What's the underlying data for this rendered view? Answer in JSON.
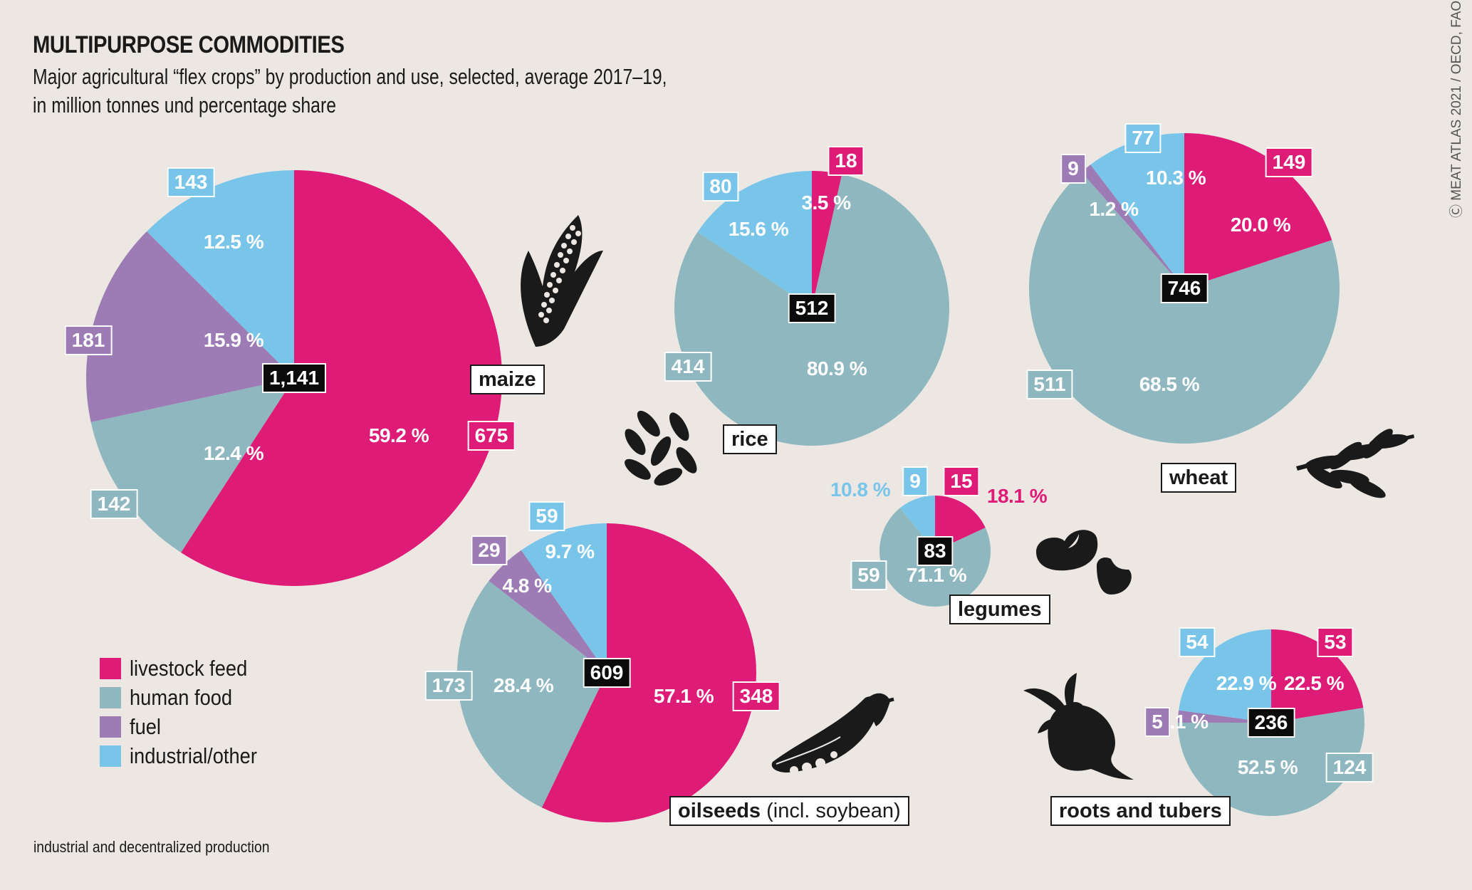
{
  "header": {
    "title": "MULTIPURPOSE COMMODITIES",
    "subtitle_line1": "Major agricultural “flex crops” by production and use, selected, average 2017–19,",
    "subtitle_line2": "in million tonnes und percentage share",
    "credit": "Ⓒ MEAT ATLAS 2021 / OECD, FAO"
  },
  "footnote": "industrial and decentralized production",
  "colors": {
    "livestock_feed": "#df1b78",
    "human_food": "#8fb7bf",
    "fuel": "#9d7bb5",
    "industrial_other": "#79c5ea",
    "total_box": "#0b0b0b"
  },
  "legend": [
    {
      "key": "livestock_feed",
      "label": "livestock feed"
    },
    {
      "key": "human_food",
      "label": "human food"
    },
    {
      "key": "fuel",
      "label": "fuel"
    },
    {
      "key": "industrial_other",
      "label": "industrial/other"
    }
  ],
  "chart_data": {
    "type": "pie",
    "title": "MULTIPURPOSE COMMODITIES",
    "unit": "million tonnes",
    "categories": [
      "livestock feed",
      "human food",
      "fuel",
      "industrial/other"
    ],
    "pies": [
      {
        "name": "maize",
        "total": "1,141",
        "total_value": 1141,
        "slices": [
          {
            "category": "livestock feed",
            "value": 675,
            "percent": "59.2 %"
          },
          {
            "category": "human food",
            "value": 142,
            "percent": "12.4 %"
          },
          {
            "category": "fuel",
            "value": 181,
            "percent": "15.9 %"
          },
          {
            "category": "industrial/other",
            "value": 143,
            "percent": "12.5 %"
          }
        ]
      },
      {
        "name": "rice",
        "total": "512",
        "total_value": 512,
        "slices": [
          {
            "category": "livestock feed",
            "value": 18,
            "percent": "3.5 %"
          },
          {
            "category": "human food",
            "value": 414,
            "percent": "80.9 %"
          },
          {
            "category": "industrial/other",
            "value": 80,
            "percent": "15.6 %"
          }
        ]
      },
      {
        "name": "wheat",
        "total": "746",
        "total_value": 746,
        "slices": [
          {
            "category": "livestock feed",
            "value": 149,
            "percent": "20.0 %"
          },
          {
            "category": "human food",
            "value": 511,
            "percent": "68.5 %"
          },
          {
            "category": "fuel",
            "value": 9,
            "percent": "1.2 %"
          },
          {
            "category": "industrial/other",
            "value": 77,
            "percent": "10.3 %"
          }
        ]
      },
      {
        "name": "legumes",
        "total": "83",
        "total_value": 83,
        "slices": [
          {
            "category": "livestock feed",
            "value": 15,
            "percent": "18.1 %"
          },
          {
            "category": "human food",
            "value": 59,
            "percent": "71.1 %"
          },
          {
            "category": "industrial/other",
            "value": 9,
            "percent": "10.8 %"
          }
        ]
      },
      {
        "name": "oilseeds",
        "name_suffix": "(incl. soybean)",
        "total": "609",
        "total_value": 609,
        "slices": [
          {
            "category": "livestock feed",
            "value": 348,
            "percent": "57.1 %"
          },
          {
            "category": "human food",
            "value": 173,
            "percent": "28.4 %"
          },
          {
            "category": "fuel",
            "value": 29,
            "percent": "4.8 %"
          },
          {
            "category": "industrial/other",
            "value": 59,
            "percent": "9.7 %"
          }
        ]
      },
      {
        "name": "roots and tubers",
        "total": "236",
        "total_value": 236,
        "slices": [
          {
            "category": "livestock feed",
            "value": 53,
            "percent": "22.5 %"
          },
          {
            "category": "human food",
            "value": 124,
            "percent": "52.5 %"
          },
          {
            "category": "fuel",
            "value": 5,
            "percent": "2.1 %"
          },
          {
            "category": "industrial/other",
            "value": 54,
            "percent": "22.9 %"
          }
        ]
      }
    ]
  }
}
